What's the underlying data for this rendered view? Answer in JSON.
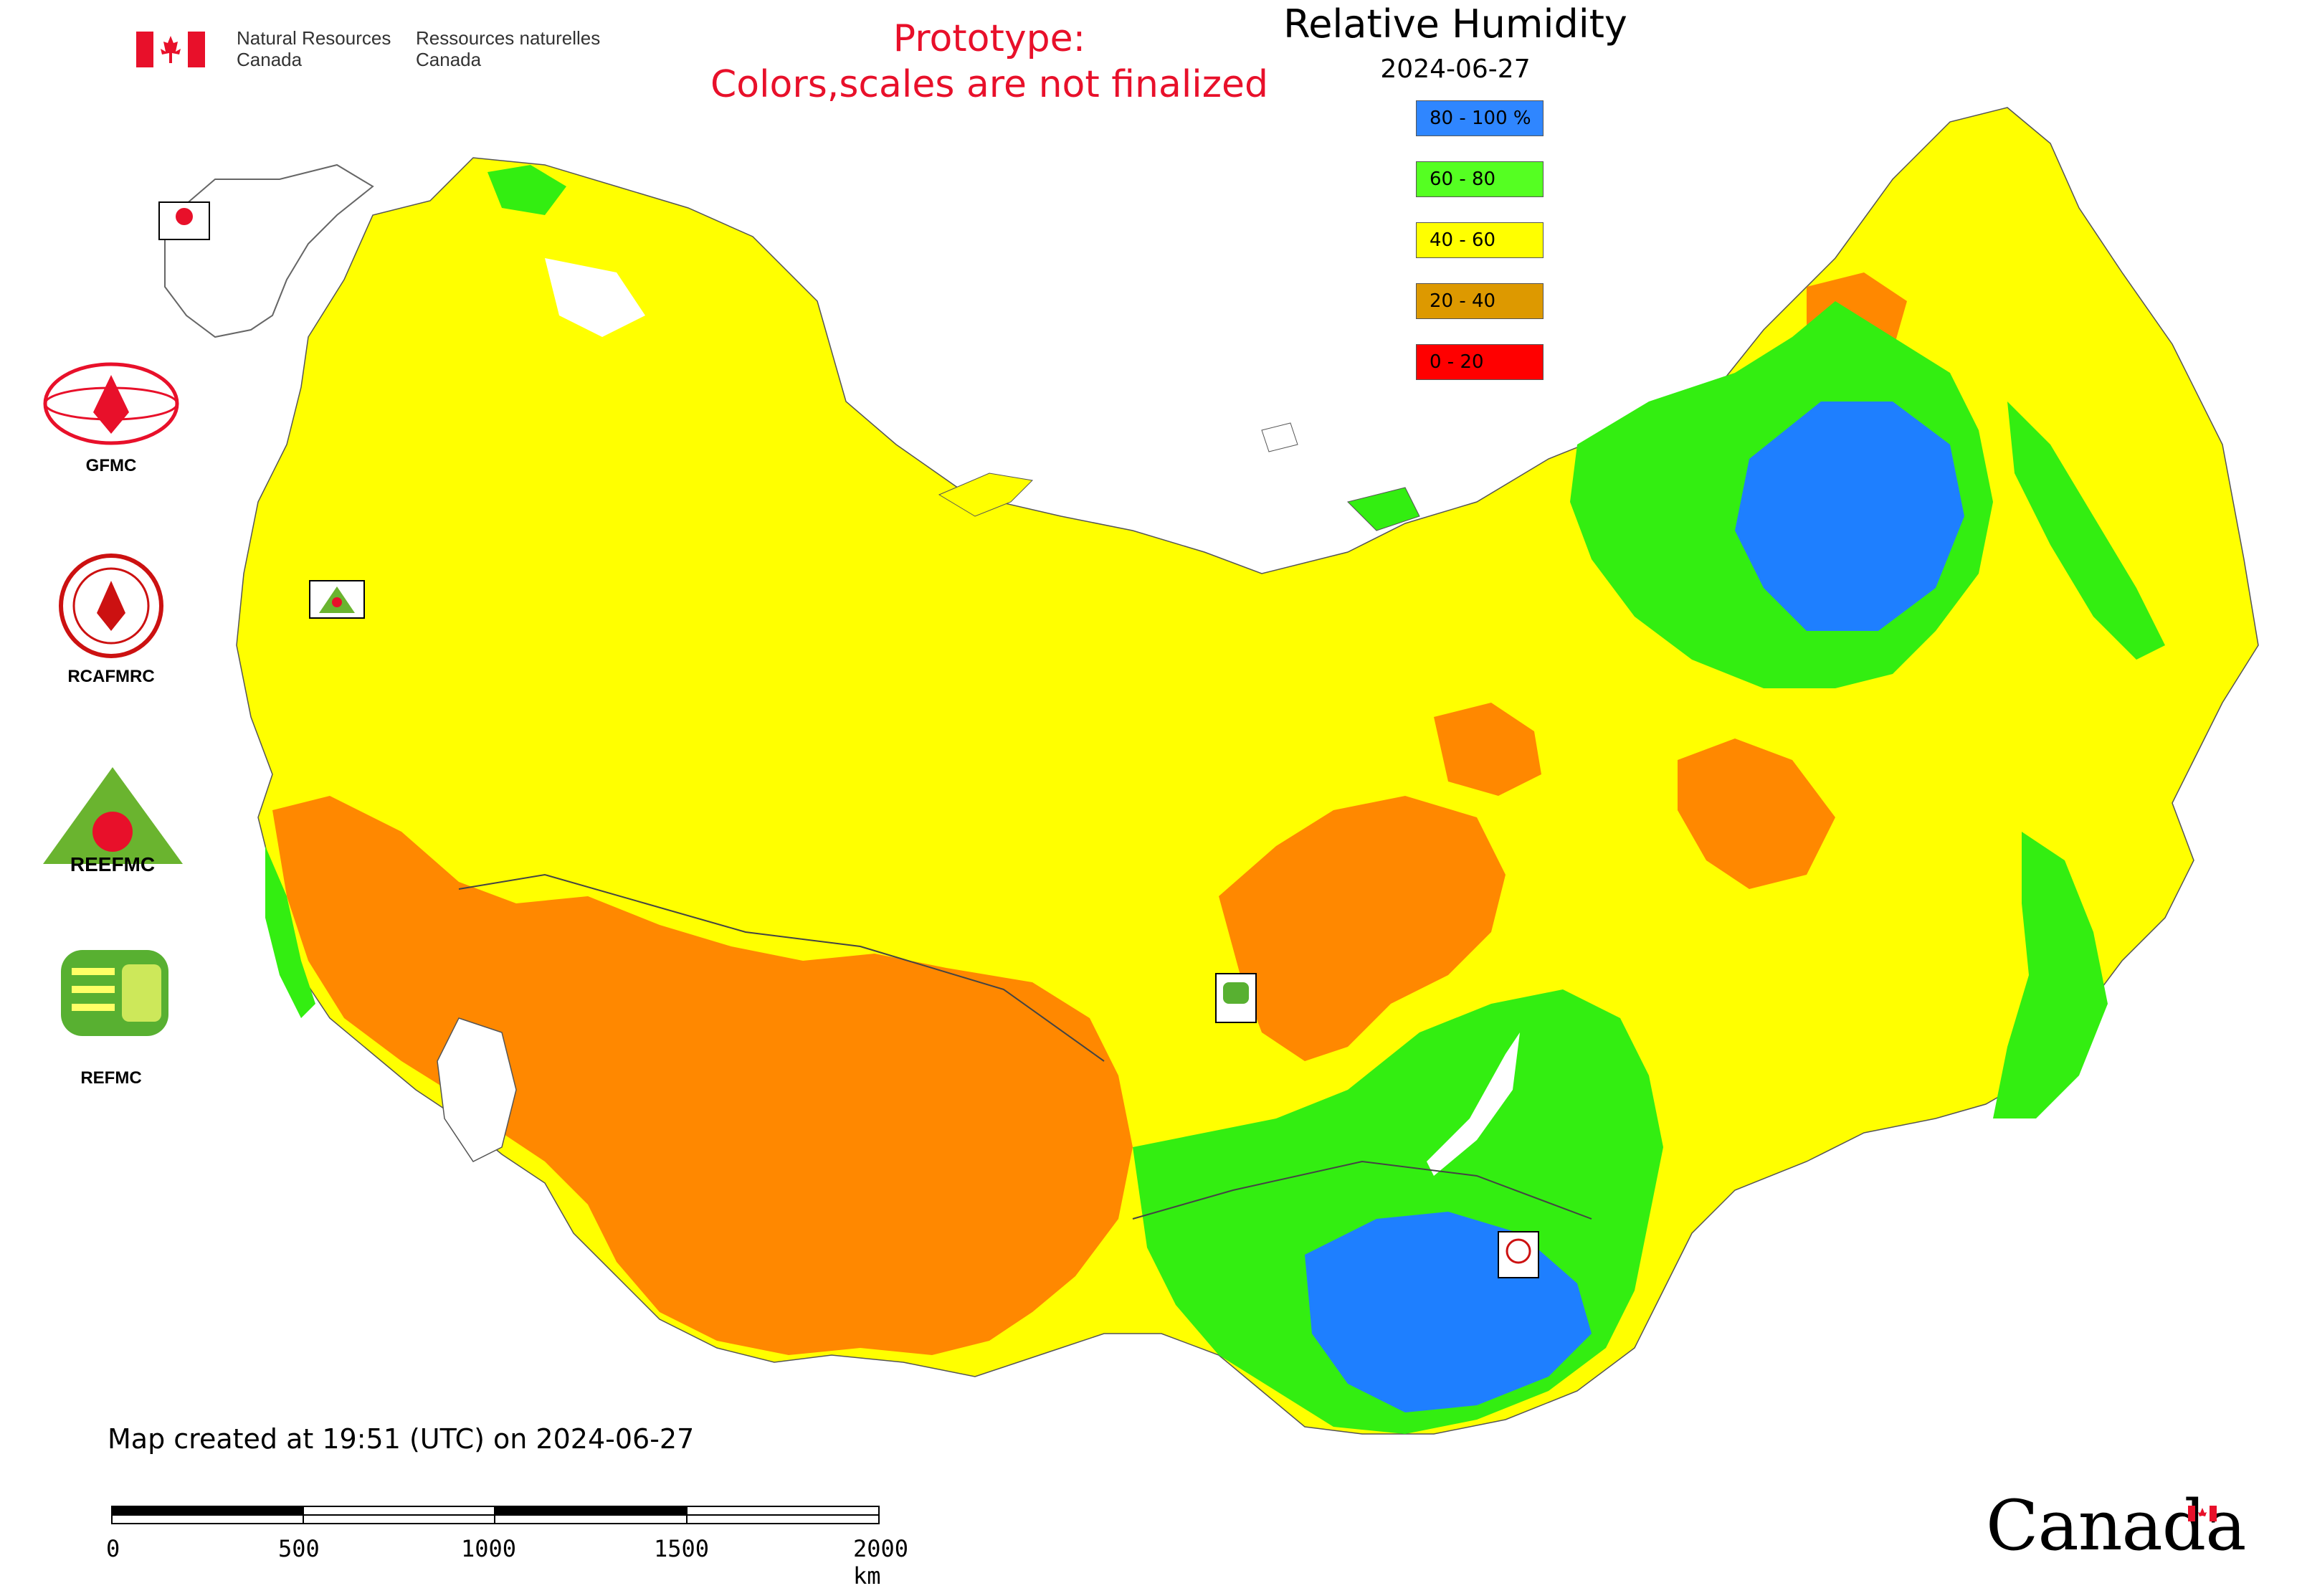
{
  "header": {
    "department_en_line1": "Natural Resources",
    "department_en_line2": "Canada",
    "department_fr_line1": "Ressources naturelles",
    "department_fr_line2": "Canada",
    "prototype_line1": "Prototype:",
    "prototype_line2": "Colors,scales are not finalized"
  },
  "map": {
    "title": "Relative Humidity",
    "date": "2024-06-27",
    "legend": [
      {
        "label": "80 - 100 %",
        "color": "#2f86ff"
      },
      {
        "label": "60 - 80",
        "color": "#55ff22"
      },
      {
        "label": "40 - 60",
        "color": "#ffff00"
      },
      {
        "label": "20 - 40",
        "color": "#dd9900"
      },
      {
        "label": "0 - 20",
        "color": "#ff0000"
      }
    ],
    "region_colors": {
      "yellow": "#ffff00",
      "orange": "#ff8800",
      "green": "#33ee11",
      "blue": "#1e7fff"
    }
  },
  "agencies": [
    {
      "name": "GFMC",
      "icon": "gfmc-logo"
    },
    {
      "name": "RCAFMRC",
      "icon": "rcafmrc-logo"
    },
    {
      "name": "REEFMC",
      "icon": "reefmc-logo"
    },
    {
      "name": "REFMC",
      "icon": "refmc-logo"
    }
  ],
  "map_markers": [
    {
      "name": "GFMC",
      "icon": "gfmc-marker"
    },
    {
      "name": "REEFMC",
      "icon": "reefmc-marker"
    },
    {
      "name": "REFMC",
      "icon": "refmc-marker"
    },
    {
      "name": "RCAFMRC",
      "icon": "rcafmrc-marker"
    }
  ],
  "footer": {
    "created": "Map created at 19:51 (UTC) on 2024-06-27",
    "scale_ticks": [
      "0",
      "500",
      "1000",
      "1500",
      "2000 km"
    ],
    "wordmark": "Canada"
  }
}
